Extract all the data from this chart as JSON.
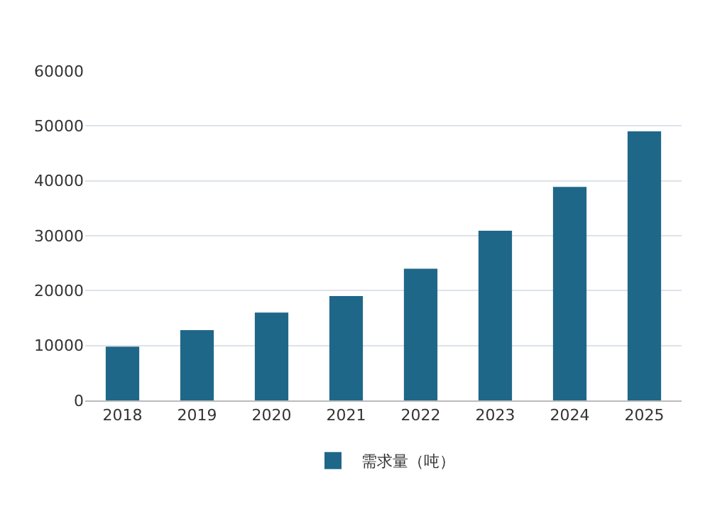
{
  "chart_data": {
    "type": "bar",
    "categories": [
      "2018",
      "2019",
      "2020",
      "2021",
      "2022",
      "2023",
      "2024",
      "2025"
    ],
    "series": [
      {
        "name": "需求量（吨）",
        "color": "#1f6789",
        "values": [
          9800,
          12800,
          16000,
          19000,
          24000,
          30900,
          38900,
          49000
        ]
      }
    ],
    "ylim": [
      0,
      60000
    ],
    "yticks": [
      0,
      10000,
      20000,
      30000,
      40000,
      50000,
      60000
    ],
    "grid": "y",
    "legend": "bottom"
  }
}
